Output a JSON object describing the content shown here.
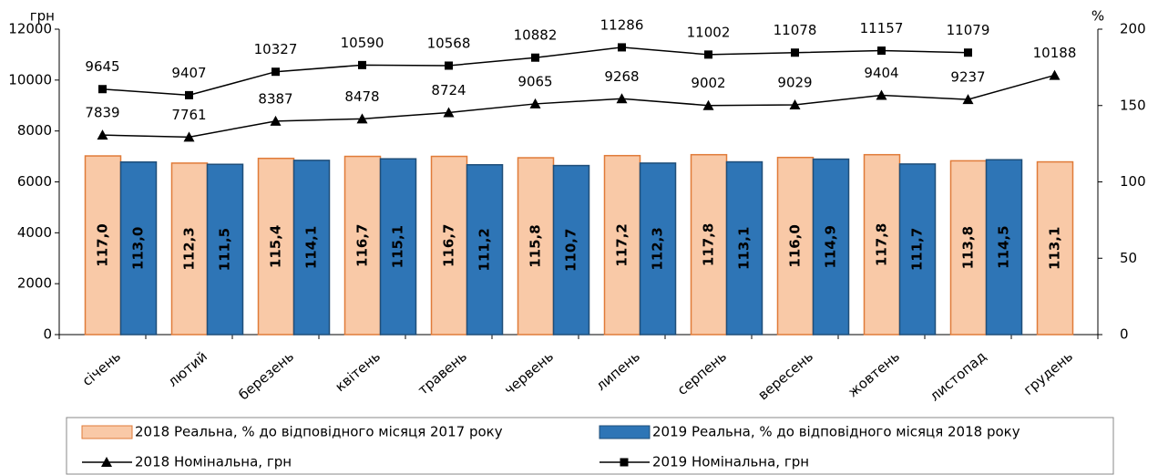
{
  "chart_data": {
    "type": "bar",
    "y_label": "грн",
    "y2_label": "%",
    "categories": [
      "січень",
      "лютий",
      "березень",
      "квітень",
      "травень",
      "червень",
      "липень",
      "серпень",
      "вересень",
      "жовтень",
      "листопад",
      "грудень"
    ],
    "ylim": [
      0,
      12000
    ],
    "yticks": [
      0,
      2000,
      4000,
      6000,
      8000,
      10000,
      12000
    ],
    "y2lim": [
      0,
      200
    ],
    "y2ticks": [
      0,
      50,
      100,
      150,
      200
    ],
    "series": [
      {
        "name": "2018 Реальна, % до відповідного місяця 2017 року",
        "type": "bar",
        "axis": "y2",
        "color": "#f9c9a7",
        "edge": "#e07b39",
        "values": [
          117.0,
          112.3,
          115.4,
          116.7,
          116.7,
          115.8,
          117.2,
          117.8,
          116.0,
          117.8,
          113.8,
          113.1
        ],
        "value_labels": [
          "117,0",
          "112,3",
          "115,4",
          "116,7",
          "116,7",
          "115,8",
          "117,2",
          "117,8",
          "116,0",
          "117,8",
          "113,8",
          "113,1"
        ]
      },
      {
        "name": "2019 Реальна, % до відповідного місяця 2018 року",
        "type": "bar",
        "axis": "y2",
        "color": "#2e75b6",
        "edge": "#1f4e79",
        "values": [
          113.0,
          111.5,
          114.1,
          115.1,
          111.2,
          110.7,
          112.3,
          113.1,
          114.9,
          111.7,
          114.5,
          null
        ],
        "value_labels": [
          "113,0",
          "111,5",
          "114,1",
          "115,1",
          "111,2",
          "110,7",
          "112,3",
          "113,1",
          "114,9",
          "111,7",
          "114,5",
          null
        ]
      },
      {
        "name": "2018 Номінальна, грн",
        "type": "line",
        "marker": "triangle",
        "color": "#000000",
        "values": [
          7839,
          7761,
          8387,
          8478,
          8724,
          9065,
          9268,
          9002,
          9029,
          9404,
          9237,
          10188
        ]
      },
      {
        "name": "2019 Номінальна, грн",
        "type": "line",
        "marker": "square",
        "color": "#000000",
        "values": [
          9645,
          9407,
          10327,
          10590,
          10568,
          10882,
          11286,
          11002,
          11078,
          11157,
          11079,
          null
        ]
      }
    ]
  }
}
